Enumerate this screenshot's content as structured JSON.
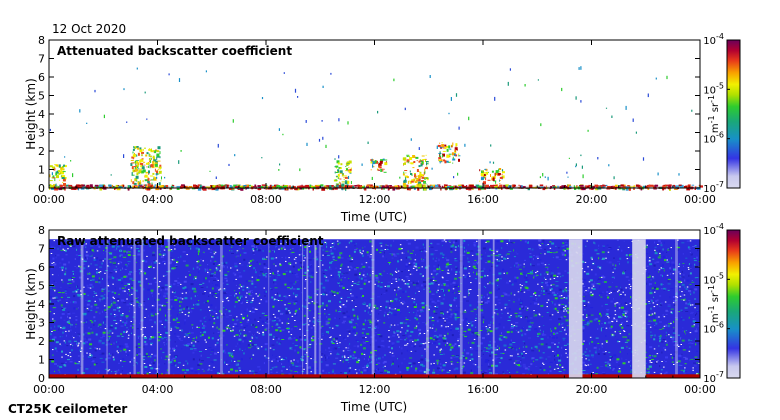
{
  "header": {
    "date": "12 Oct 2020"
  },
  "footer": {
    "instrument": "CT25K ceilometer"
  },
  "colors": {
    "hot": "#b00000",
    "band": "#e8dfe6",
    "low": "#d7d6ee"
  },
  "chart_data": [
    {
      "type": "heatmap",
      "title": "Attenuated backscatter coefficient",
      "xlabel": "Time (UTC)",
      "ylabel": "Height (km)",
      "xlim": [
        "00:00",
        "24:00"
      ],
      "ylim": [
        0,
        8
      ],
      "x_ticks": [
        "00:00",
        "04:00",
        "08:00",
        "12:00",
        "16:00",
        "20:00",
        "00:00"
      ],
      "y_ticks": [
        "0",
        "1",
        "2",
        "3",
        "4",
        "5",
        "6",
        "7",
        "8"
      ],
      "colorbar": {
        "scale": "log",
        "labels": [
          "10-7",
          "10-6",
          "10-5",
          "10-4"
        ],
        "unit": "m-1 sr-1"
      },
      "features": [
        {
          "kind": "boundary-layer",
          "time": "00:00-24:00",
          "height_km": [
            0,
            0.2
          ]
        },
        {
          "kind": "aerosol",
          "time": "00:00-00:40",
          "height_km": [
            0,
            1.3
          ]
        },
        {
          "kind": "aerosol",
          "time": "03:00-04:10",
          "height_km": [
            0,
            2.3
          ]
        },
        {
          "kind": "aerosol",
          "time": "10:30-11:10",
          "height_km": [
            0,
            1.5
          ]
        },
        {
          "kind": "cloud",
          "time": "11:50-12:30",
          "height_km": [
            0.8,
            1.6
          ]
        },
        {
          "kind": "aerosol",
          "time": "13:00-14:00",
          "height_km": [
            0,
            1.8
          ]
        },
        {
          "kind": "cloud",
          "time": "14:20-15:10",
          "height_km": [
            1.3,
            2.5
          ]
        },
        {
          "kind": "cloud",
          "time": "15:50-16:50",
          "height_km": [
            0.2,
            1.1
          ]
        }
      ]
    },
    {
      "type": "heatmap",
      "title": "Raw attenuated backscatter coefficient",
      "xlabel": "Time (UTC)",
      "ylabel": "Height (km)",
      "xlim": [
        "00:00",
        "24:00"
      ],
      "ylim": [
        0,
        8
      ],
      "x_ticks": [
        "00:00",
        "04:00",
        "08:00",
        "12:00",
        "16:00",
        "20:00",
        "00:00"
      ],
      "y_ticks": [
        "0",
        "1",
        "2",
        "3",
        "4",
        "5",
        "6",
        "7",
        "8"
      ],
      "colorbar": {
        "scale": "log",
        "labels": [
          "10-7",
          "10-6",
          "10-5",
          "10-4"
        ],
        "unit": "m-1 sr-1"
      },
      "features": [
        {
          "kind": "noise",
          "time": "00:00-24:00",
          "height_km": [
            0,
            7.5
          ]
        },
        {
          "kind": "clear-gap",
          "time": "19:10-19:40",
          "height_km": [
            0,
            7.5
          ]
        },
        {
          "kind": "clear-gap",
          "time": "21:30-22:00",
          "height_km": [
            0,
            7.5
          ]
        }
      ]
    }
  ]
}
